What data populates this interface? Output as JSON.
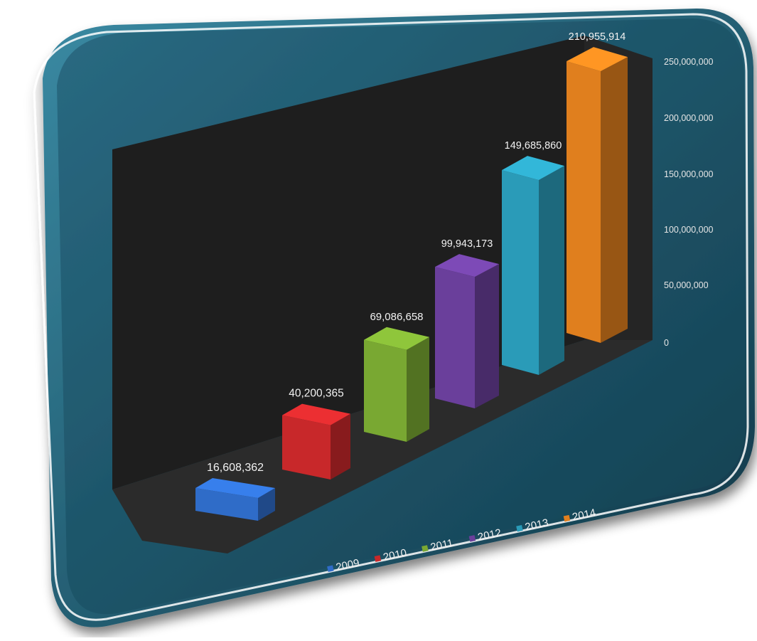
{
  "chart_data": {
    "type": "bar",
    "view": "3d-perspective",
    "categories": [
      "2009",
      "2010",
      "2011",
      "2012",
      "2013",
      "2014"
    ],
    "values": [
      16608362,
      40200365,
      69086658,
      99943173,
      149685860,
      210955914
    ],
    "value_labels": [
      "16,608,362",
      "40,200,365",
      "69,086,658",
      "99,943,173",
      "149,685,860",
      "210,955,914"
    ],
    "colors": [
      "#2f6cc8",
      "#c8282a",
      "#79a832",
      "#6a3f9b",
      "#2a9bb8",
      "#e07f1e"
    ],
    "y_ticks": [
      0,
      50000000,
      100000000,
      150000000,
      200000000,
      250000000
    ],
    "y_tick_labels": [
      "0",
      "50,000,000",
      "100,000,000",
      "150,000,000",
      "200,000,000",
      "250,000,000"
    ],
    "ylim": [
      0,
      250000000
    ],
    "legend": [
      "2009",
      "2010",
      "2011",
      "2012",
      "2013",
      "2014"
    ],
    "legend_position": "bottom",
    "background_color": "#1b4a5e",
    "plot_color": "#1f1f1f",
    "grid": false
  }
}
